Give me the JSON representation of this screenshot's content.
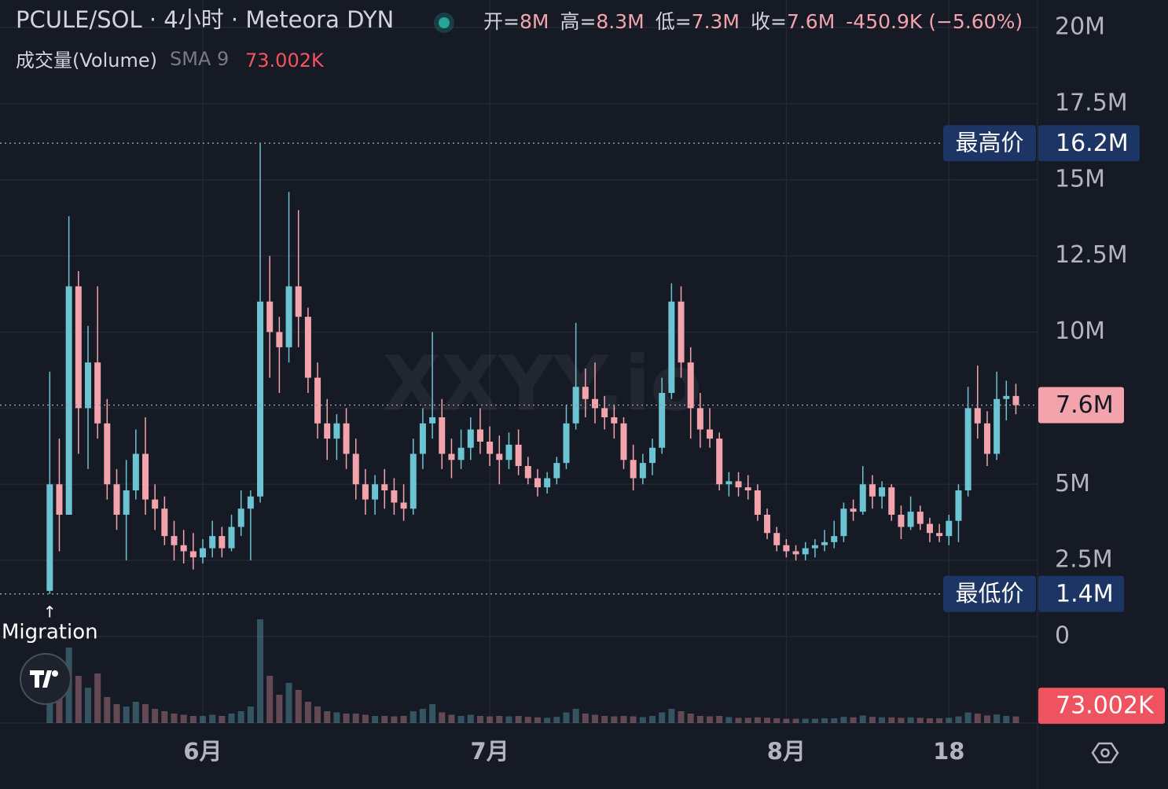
{
  "chart_data": {
    "type": "candlestick",
    "title": "PCULE/SOL · 4小时 · Meteora DYN",
    "ohlc_legend": [
      {
        "name": "开=",
        "value": "8M"
      },
      {
        "name": "高=",
        "value": "8.3M"
      },
      {
        "name": "低=",
        "value": "7.3M"
      },
      {
        "name": "收=",
        "value": "7.6M"
      }
    ],
    "change": "-450.9K (−5.60%)",
    "volume_title": "成交量(Volume)",
    "volume_indicator": "SMA 9",
    "volume_sma": {
      "value": 73.002,
      "label": "73.002K"
    },
    "watermark": "XXYY.io",
    "annotation": {
      "arrow": "↑",
      "text": "Migration"
    },
    "up_color": "#6cc3d1",
    "down_color": "#f3a3ab",
    "categories": [
      null,
      null,
      null,
      null,
      null,
      null,
      null,
      null,
      null,
      null,
      null,
      null,
      null,
      null,
      null,
      null,
      "6月",
      null,
      null,
      null,
      null,
      null,
      null,
      null,
      null,
      null,
      null,
      null,
      null,
      null,
      null,
      null,
      null,
      null,
      null,
      null,
      null,
      null,
      null,
      null,
      null,
      null,
      null,
      null,
      null,
      null,
      "7月",
      null,
      null,
      null,
      null,
      null,
      null,
      null,
      null,
      null,
      null,
      null,
      null,
      null,
      null,
      null,
      null,
      null,
      null,
      null,
      null,
      null,
      null,
      null,
      null,
      null,
      null,
      null,
      null,
      null,
      null,
      "8月",
      null,
      null,
      null,
      null,
      null,
      null,
      null,
      null,
      null,
      null,
      null,
      null,
      null,
      null,
      null,
      null,
      "18",
      null,
      null,
      null,
      null,
      null,
      null,
      null
    ],
    "open": [
      1.5,
      5,
      4,
      11.5,
      7.5,
      9,
      7,
      5,
      4,
      4.8,
      6,
      4.5,
      4.2,
      3.3,
      3.0,
      2.8,
      2.6,
      2.9,
      3.3,
      2.9,
      3.6,
      4.2,
      4.6,
      11,
      10,
      9.5,
      11.5,
      10.5,
      8.5,
      7.0,
      6.5,
      7.0,
      6.0,
      5.0,
      4.5,
      5.0,
      4.8,
      4.4,
      4.2,
      6.0,
      7.0,
      7.2,
      6.0,
      5.8,
      6.2,
      6.8,
      6.4,
      6.0,
      5.8,
      6.3,
      5.6,
      5.2,
      4.9,
      5.2,
      5.7,
      7.0,
      8.2,
      7.8,
      7.5,
      7.2,
      7.0,
      5.8,
      5.2,
      5.7,
      6.2,
      8.0,
      11.0,
      9.0,
      7.5,
      6.8,
      6.5,
      5.0,
      5.1,
      4.9,
      4.8,
      4.0,
      3.4,
      3.0,
      2.8,
      2.7,
      2.9,
      3.0,
      3.1,
      3.3,
      4.2,
      4.1,
      5.0,
      4.6,
      4.9,
      4.0,
      3.6,
      4.1,
      3.7,
      3.4,
      3.3,
      3.8,
      4.8,
      7.5,
      7.0,
      6.0,
      7.8,
      7.9
    ],
    "high": [
      8.7,
      6.5,
      13.8,
      12.0,
      10.2,
      11.5,
      7.8,
      5.5,
      5.8,
      6.8,
      7.2,
      5.0,
      4.6,
      3.8,
      3.5,
      3.4,
      3.2,
      3.8,
      3.6,
      4.0,
      4.8,
      4.8,
      16.2,
      12.5,
      10.5,
      14.6,
      14.0,
      10.8,
      9.0,
      7.8,
      7.3,
      7.5,
      6.5,
      5.5,
      5.3,
      5.5,
      5.2,
      5.0,
      6.5,
      7.5,
      10.0,
      7.8,
      6.5,
      6.8,
      7.2,
      7.5,
      6.9,
      6.6,
      6.7,
      6.8,
      5.9,
      5.5,
      5.4,
      5.9,
      7.6,
      10.3,
      8.8,
      9.0,
      7.9,
      7.6,
      7.2,
      6.3,
      6.0,
      6.5,
      8.5,
      11.6,
      11.5,
      9.5,
      8.0,
      7.5,
      6.7,
      5.4,
      5.4,
      5.3,
      5.0,
      4.2,
      3.6,
      3.2,
      3.0,
      3.1,
      3.2,
      3.5,
      3.8,
      4.4,
      4.5,
      5.6,
      5.3,
      5.1,
      5.0,
      4.3,
      4.6,
      4.3,
      3.9,
      3.7,
      4.0,
      5.0,
      8.2,
      8.9,
      7.4,
      8.7,
      8.4,
      8.3
    ],
    "low": [
      1.4,
      2.8,
      4,
      6.0,
      5.5,
      6.5,
      4.5,
      3.5,
      2.5,
      4.5,
      4.0,
      3.5,
      3.0,
      2.5,
      2.4,
      2.2,
      2.4,
      2.6,
      2.6,
      2.8,
      3.3,
      2.5,
      4.4,
      8.5,
      8.0,
      9.0,
      9.5,
      8.0,
      6.5,
      5.8,
      5.8,
      5.5,
      4.5,
      4.0,
      4.0,
      4.2,
      4.0,
      3.8,
      4.0,
      5.5,
      6.5,
      5.5,
      5.2,
      5.5,
      5.8,
      6.0,
      5.6,
      5.0,
      5.5,
      5.3,
      5.0,
      4.6,
      4.7,
      5.0,
      5.5,
      6.8,
      7.2,
      7.0,
      6.8,
      6.5,
      5.5,
      4.8,
      5.0,
      5.3,
      6.0,
      7.8,
      8.5,
      6.5,
      6.2,
      6.2,
      4.8,
      4.6,
      4.6,
      4.5,
      3.8,
      3.2,
      2.8,
      2.6,
      2.5,
      2.5,
      2.6,
      2.8,
      2.9,
      3.1,
      3.8,
      4.0,
      4.2,
      4.2,
      3.8,
      3.2,
      3.5,
      3.5,
      3.1,
      3.1,
      3.0,
      3.1,
      4.6,
      6.5,
      5.6,
      5.8,
      7.1,
      7.3
    ],
    "close": [
      5.0,
      4.0,
      11.5,
      7.5,
      9.0,
      7.0,
      5.0,
      4.0,
      4.8,
      6.0,
      4.5,
      4.2,
      3.3,
      3.0,
      2.8,
      2.6,
      2.9,
      3.3,
      2.9,
      3.6,
      4.2,
      4.6,
      11.0,
      10.0,
      9.5,
      11.5,
      10.5,
      8.5,
      7.0,
      6.5,
      7.0,
      6.0,
      5.0,
      4.5,
      5.0,
      4.8,
      4.4,
      4.2,
      6.0,
      7.0,
      7.2,
      6.0,
      5.8,
      6.2,
      6.8,
      6.4,
      6.0,
      5.8,
      6.3,
      5.6,
      5.2,
      4.9,
      5.2,
      5.7,
      7.0,
      8.2,
      7.8,
      7.5,
      7.2,
      7.0,
      5.8,
      5.2,
      5.7,
      6.2,
      8.0,
      11.0,
      9.0,
      7.5,
      6.8,
      6.5,
      5.0,
      5.1,
      4.9,
      4.8,
      4.0,
      3.4,
      3.0,
      2.8,
      2.7,
      2.9,
      3.0,
      3.1,
      3.3,
      4.2,
      4.1,
      5.0,
      4.6,
      4.9,
      4.0,
      3.6,
      4.1,
      3.7,
      3.4,
      3.3,
      3.8,
      4.8,
      7.5,
      7.0,
      6.0,
      7.8,
      7.9,
      7.6
    ],
    "volume": [
      260,
      180,
      320,
      200,
      150,
      210,
      110,
      80,
      70,
      90,
      80,
      60,
      50,
      40,
      35,
      30,
      30,
      35,
      30,
      40,
      50,
      70,
      440,
      200,
      120,
      170,
      140,
      90,
      70,
      50,
      45,
      40,
      40,
      35,
      30,
      30,
      28,
      30,
      50,
      60,
      80,
      45,
      35,
      30,
      35,
      30,
      28,
      30,
      28,
      30,
      26,
      24,
      22,
      26,
      45,
      60,
      40,
      35,
      30,
      28,
      30,
      28,
      25,
      30,
      45,
      60,
      50,
      40,
      30,
      28,
      30,
      25,
      22,
      22,
      24,
      22,
      20,
      18,
      18,
      18,
      18,
      20,
      20,
      26,
      24,
      32,
      26,
      24,
      24,
      22,
      24,
      22,
      20,
      20,
      22,
      28,
      45,
      40,
      32,
      36,
      30,
      28
    ],
    "volume_lim": [
      0,
      1400
    ],
    "ylim": [
      0,
      20
    ],
    "yticks": [
      0,
      {
        "value": 2.5,
        "label": "2.5M"
      },
      {
        "value": 5,
        "label": "5M"
      },
      {
        "value": 7.5,
        "label": ""
      },
      {
        "value": 10,
        "label": "10M"
      },
      {
        "value": 12.5,
        "label": "12.5M"
      },
      {
        "value": 15,
        "label": "15M"
      },
      {
        "value": 17.5,
        "label": "17.5M"
      },
      {
        "value": 20,
        "label": "20M"
      }
    ],
    "price_lines": [
      {
        "name": "最高价",
        "value": 16.2,
        "label": "16.2M"
      },
      {
        "name": "最低价",
        "value": 1.4,
        "label": "1.4M"
      },
      {
        "value": 7.6,
        "label": "7.6M"
      }
    ],
    "grid": true
  }
}
